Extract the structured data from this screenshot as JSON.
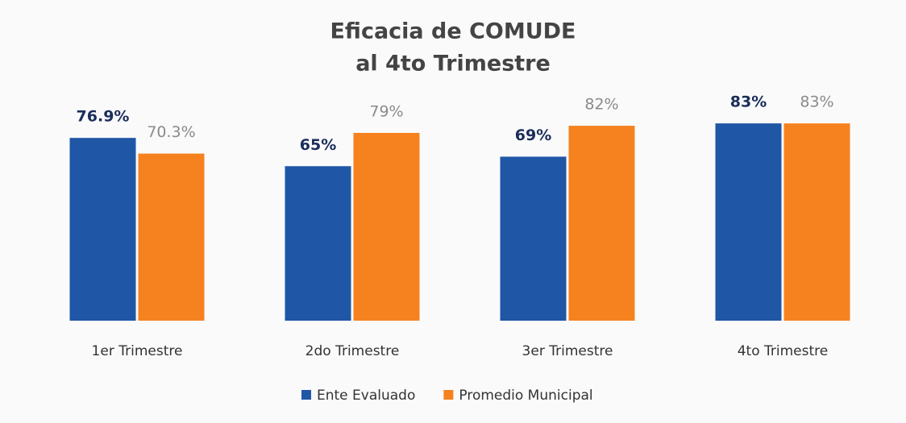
{
  "chart_data": {
    "type": "bar",
    "title": [
      "Eficacia  de COMUDE",
      "al 4to Trimestre"
    ],
    "categories": [
      "1er Trimestre",
      "2do Trimestre",
      "3er Trimestre",
      "4to Trimestre"
    ],
    "series": [
      {
        "name": "Ente Evaluado",
        "color": "#1f56a6",
        "values": [
          76.9,
          65,
          69,
          83
        ],
        "value_labels": [
          "76.9%",
          "65%",
          "69%",
          "83%"
        ]
      },
      {
        "name": "Promedio Municipal",
        "color": "#f5821f",
        "values": [
          70.3,
          79,
          82,
          83
        ],
        "value_labels": [
          "70.3%",
          "79%",
          "82%",
          "83%"
        ]
      }
    ],
    "legend": "bottom"
  }
}
